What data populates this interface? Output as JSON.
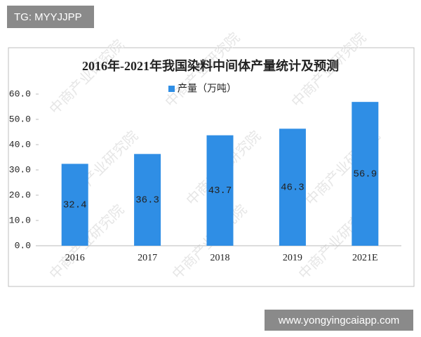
{
  "header_tag": "TG: MYYJJPP",
  "footer_url": "www.yongyingcaiapp.com",
  "watermark": "中商产业研究院",
  "chart_data": {
    "type": "bar",
    "title": "2016年-2021年我国染料中间体产量统计及预测",
    "categories": [
      "2016",
      "2017",
      "2018",
      "2019",
      "2021E"
    ],
    "series": [
      {
        "name": "产量（万吨）",
        "color": "#2f8ee5",
        "values": [
          32.4,
          36.3,
          43.7,
          46.3,
          56.9
        ]
      }
    ],
    "ylim": [
      0,
      60
    ],
    "yticks": [
      {
        "value": 0,
        "label": "0.0"
      },
      {
        "value": 10,
        "label": "10.0"
      },
      {
        "value": 20,
        "label": "20.0"
      },
      {
        "value": 30,
        "label": "30.0"
      },
      {
        "value": 40,
        "label": "40.0"
      },
      {
        "value": 50,
        "label": "50.0"
      },
      {
        "value": 60,
        "label": "60.0"
      }
    ],
    "grid": false,
    "legend": "top"
  }
}
